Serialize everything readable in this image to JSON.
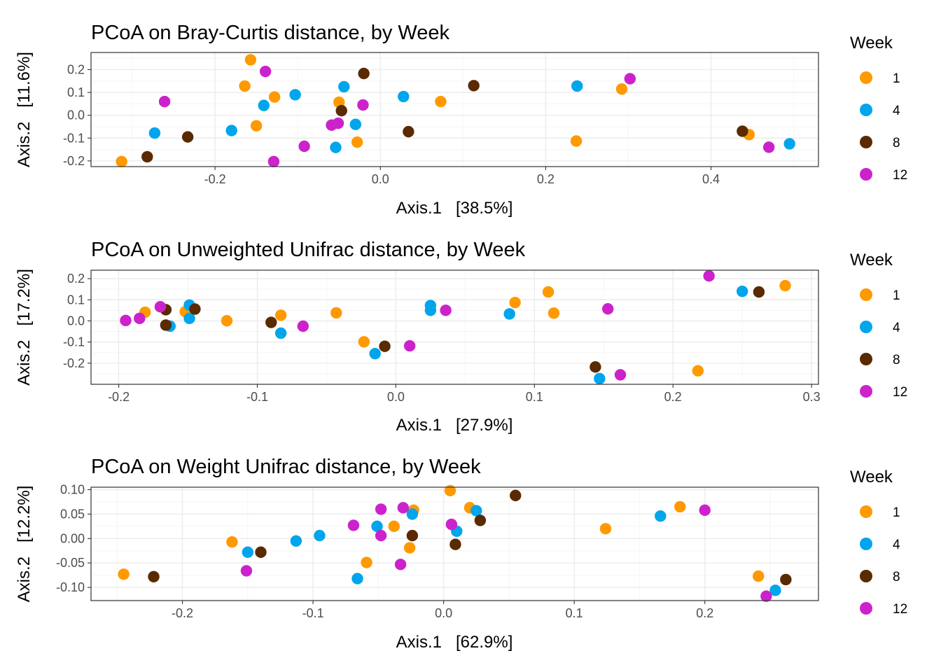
{
  "colors": {
    "1": "#FF9900",
    "4": "#00A5EC",
    "8": "#5A2A00",
    "12": "#CC22CC",
    "grid_major": "#EBEBEB",
    "grid_minor": "#F5F5F5",
    "panel_border": "#333333",
    "tick_text": "#4D4D4D"
  },
  "legend": {
    "title": "Week",
    "labels": [
      "1",
      "4",
      "8",
      "12"
    ]
  },
  "chart_data": [
    {
      "type": "scatter",
      "title": "PCoA on Bray-Curtis distance, by Week",
      "xlabel": "Axis.1   [38.5%]",
      "ylabel": "Axis.2   [11.6%]",
      "xlim": [
        -0.35,
        0.53
      ],
      "ylim": [
        -0.225,
        0.275
      ],
      "xticks": [
        -0.2,
        0.0,
        0.2,
        0.4
      ],
      "xtick_labels": [
        "-0.2",
        "0.0",
        "0.2",
        "0.4"
      ],
      "yticks": [
        -0.2,
        -0.1,
        0.0,
        0.1,
        0.2
      ],
      "ytick_labels": [
        "-0.2",
        "-0.1",
        "0.0",
        "0.1",
        "0.2"
      ],
      "legend_position": "right",
      "series": [
        {
          "name": "1",
          "points": [
            [
              -0.313,
              -0.203
            ],
            [
              -0.157,
              0.243
            ],
            [
              -0.164,
              0.128
            ],
            [
              -0.128,
              0.08
            ],
            [
              -0.15,
              -0.046
            ],
            [
              -0.05,
              0.057
            ],
            [
              -0.028,
              -0.118
            ],
            [
              0.073,
              0.06
            ],
            [
              0.237,
              -0.113
            ],
            [
              0.292,
              0.115
            ],
            [
              0.446,
              -0.085
            ]
          ]
        },
        {
          "name": "4",
          "points": [
            [
              -0.273,
              -0.078
            ],
            [
              -0.18,
              -0.067
            ],
            [
              -0.141,
              0.043
            ],
            [
              -0.103,
              0.09
            ],
            [
              -0.044,
              0.125
            ],
            [
              -0.054,
              -0.141
            ],
            [
              -0.03,
              -0.04
            ],
            [
              0.028,
              0.082
            ],
            [
              0.238,
              0.128
            ],
            [
              0.495,
              -0.125
            ]
          ]
        },
        {
          "name": "8",
          "points": [
            [
              -0.282,
              -0.182
            ],
            [
              -0.233,
              -0.095
            ],
            [
              -0.047,
              0.02
            ],
            [
              -0.02,
              0.183
            ],
            [
              0.034,
              -0.072
            ],
            [
              0.113,
              0.13
            ],
            [
              0.438,
              -0.07
            ]
          ]
        },
        {
          "name": "12",
          "points": [
            [
              -0.261,
              0.06
            ],
            [
              -0.139,
              0.192
            ],
            [
              -0.129,
              -0.203
            ],
            [
              -0.092,
              -0.136
            ],
            [
              -0.059,
              -0.043
            ],
            [
              -0.051,
              -0.035
            ],
            [
              -0.021,
              0.045
            ],
            [
              0.302,
              0.16
            ],
            [
              0.47,
              -0.14
            ]
          ]
        }
      ]
    },
    {
      "type": "scatter",
      "title": "PCoA on Unweighted Unifrac distance, by Week",
      "xlabel": "Axis.1   [27.9%]",
      "ylabel": "Axis.2   [17.2%]",
      "xlim": [
        -0.22,
        0.305
      ],
      "ylim": [
        -0.3,
        0.24
      ],
      "xticks": [
        -0.2,
        -0.1,
        0.0,
        0.1,
        0.2,
        0.3
      ],
      "xtick_labels": [
        "-0.2",
        "-0.1",
        "0.0",
        "0.1",
        "0.2",
        "0.3"
      ],
      "yticks": [
        -0.2,
        -0.1,
        0.0,
        0.1,
        0.2
      ],
      "ytick_labels": [
        "-0.2",
        "-0.1",
        "0.0",
        "0.1",
        "0.2"
      ],
      "legend_position": "right",
      "series": [
        {
          "name": "1",
          "points": [
            [
              -0.181,
              0.041
            ],
            [
              -0.152,
              0.044
            ],
            [
              -0.122,
              0.001
            ],
            [
              -0.083,
              0.027
            ],
            [
              -0.043,
              0.038
            ],
            [
              -0.023,
              -0.099
            ],
            [
              0.086,
              0.087
            ],
            [
              0.11,
              0.137
            ],
            [
              0.114,
              0.037
            ],
            [
              0.218,
              -0.236
            ],
            [
              0.281,
              0.167
            ]
          ]
        },
        {
          "name": "4",
          "points": [
            [
              -0.163,
              -0.025
            ],
            [
              -0.149,
              0.012
            ],
            [
              -0.149,
              0.075
            ],
            [
              -0.083,
              -0.058
            ],
            [
              -0.015,
              -0.155
            ],
            [
              0.025,
              0.073
            ],
            [
              0.025,
              0.05
            ],
            [
              0.082,
              0.033
            ],
            [
              0.147,
              -0.273
            ],
            [
              0.25,
              0.14
            ]
          ]
        },
        {
          "name": "8",
          "points": [
            [
              -0.166,
              0.053
            ],
            [
              -0.166,
              -0.02
            ],
            [
              -0.145,
              0.056
            ],
            [
              -0.09,
              -0.007
            ],
            [
              -0.008,
              -0.12
            ],
            [
              0.144,
              -0.218
            ],
            [
              0.262,
              0.137
            ]
          ]
        },
        {
          "name": "12",
          "points": [
            [
              -0.195,
              0.002
            ],
            [
              -0.185,
              0.012
            ],
            [
              -0.17,
              0.067
            ],
            [
              -0.067,
              -0.025
            ],
            [
              0.01,
              -0.118
            ],
            [
              0.036,
              0.05
            ],
            [
              0.153,
              0.057
            ],
            [
              0.162,
              -0.255
            ],
            [
              0.226,
              0.213
            ]
          ]
        }
      ]
    },
    {
      "type": "scatter",
      "title": "PCoA on Weight Unifrac distance, by Week",
      "xlabel": "Axis.1   [62.9%]",
      "ylabel": "Axis.2   [12.2%]",
      "xlim": [
        -0.27,
        0.287
      ],
      "ylim": [
        -0.127,
        0.105
      ],
      "xticks": [
        -0.2,
        -0.1,
        0.0,
        0.1,
        0.2
      ],
      "xtick_labels": [
        "-0.2",
        "-0.1",
        "0.0",
        "0.1",
        "0.2"
      ],
      "yticks": [
        -0.1,
        -0.05,
        0.0,
        0.05,
        0.1
      ],
      "ytick_labels": [
        "-0.10",
        "-0.05",
        "0.00",
        "0.05",
        "0.10"
      ],
      "legend_position": "right",
      "series": [
        {
          "name": "1",
          "points": [
            [
              -0.245,
              -0.073
            ],
            [
              -0.162,
              -0.007
            ],
            [
              -0.059,
              -0.049
            ],
            [
              -0.038,
              0.025
            ],
            [
              -0.023,
              0.058
            ],
            [
              -0.026,
              -0.019
            ],
            [
              0.005,
              0.098
            ],
            [
              0.02,
              0.063
            ],
            [
              0.124,
              0.02
            ],
            [
              0.181,
              0.065
            ],
            [
              0.241,
              -0.077
            ]
          ]
        },
        {
          "name": "4",
          "points": [
            [
              -0.15,
              -0.028
            ],
            [
              -0.113,
              -0.005
            ],
            [
              -0.095,
              0.006
            ],
            [
              -0.066,
              -0.082
            ],
            [
              -0.051,
              0.025
            ],
            [
              -0.024,
              0.05
            ],
            [
              0.01,
              0.015
            ],
            [
              0.025,
              0.057
            ],
            [
              0.166,
              0.046
            ],
            [
              0.254,
              -0.106
            ]
          ]
        },
        {
          "name": "8",
          "points": [
            [
              -0.222,
              -0.078
            ],
            [
              -0.14,
              -0.028
            ],
            [
              -0.024,
              0.006
            ],
            [
              0.009,
              -0.012
            ],
            [
              0.028,
              0.037
            ],
            [
              0.055,
              0.088
            ],
            [
              0.262,
              -0.084
            ]
          ]
        },
        {
          "name": "12",
          "points": [
            [
              -0.151,
              -0.066
            ],
            [
              -0.069,
              0.027
            ],
            [
              -0.048,
              0.06
            ],
            [
              -0.048,
              0.006
            ],
            [
              -0.033,
              -0.053
            ],
            [
              -0.031,
              0.063
            ],
            [
              0.006,
              0.029
            ],
            [
              0.2,
              0.058
            ],
            [
              0.247,
              -0.118
            ]
          ]
        }
      ]
    }
  ]
}
